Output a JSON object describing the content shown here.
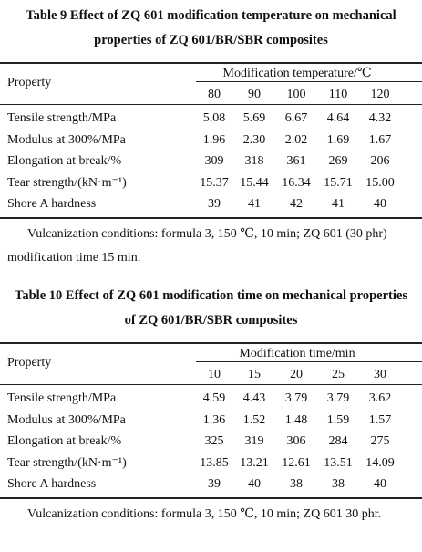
{
  "tables": [
    {
      "title": "Table 9  Effect of ZQ 601 modification temperature on mechanical properties of ZQ 601/BR/SBR composites",
      "property_header": "Property",
      "column_header": "Modification temperature/℃",
      "columns": [
        "80",
        "90",
        "100",
        "110",
        "120"
      ],
      "rows": [
        {
          "property": "Tensile strength/MPa",
          "values": [
            "5.08",
            "5.69",
            "6.67",
            "4.64",
            "4.32"
          ]
        },
        {
          "property": "Modulus at 300%/MPa",
          "values": [
            "1.96",
            "2.30",
            "2.02",
            "1.69",
            "1.67"
          ]
        },
        {
          "property": "Elongation at break/%",
          "values": [
            "309",
            "318",
            "361",
            "269",
            "206"
          ]
        },
        {
          "property": "Tear strength/(kN·m⁻¹)",
          "values": [
            "15.37",
            "15.44",
            "16.34",
            "15.71",
            "15.00"
          ]
        },
        {
          "property": "Shore A hardness",
          "values": [
            "39",
            "41",
            "42",
            "41",
            "40"
          ]
        }
      ],
      "note": "Vulcanization conditions: formula 3, 150 ℃, 10 min; ZQ 601 (30 phr) modification time 15 min."
    },
    {
      "title": "Table 10  Effect of ZQ 601 modification time on mechanical properties of ZQ 601/BR/SBR composites",
      "property_header": "Property",
      "column_header": "Modification time/min",
      "columns": [
        "10",
        "15",
        "20",
        "25",
        "30"
      ],
      "rows": [
        {
          "property": "Tensile strength/MPa",
          "values": [
            "4.59",
            "4.43",
            "3.79",
            "3.79",
            "3.62"
          ]
        },
        {
          "property": "Modulus at 300%/MPa",
          "values": [
            "1.36",
            "1.52",
            "1.48",
            "1.59",
            "1.57"
          ]
        },
        {
          "property": "Elongation at break/%",
          "values": [
            "325",
            "319",
            "306",
            "284",
            "275"
          ]
        },
        {
          "property": "Tear strength/(kN·m⁻¹)",
          "values": [
            "13.85",
            "13.21",
            "12.61",
            "13.51",
            "14.09"
          ]
        },
        {
          "property": "Shore A hardness",
          "values": [
            "39",
            "40",
            "38",
            "38",
            "40"
          ]
        }
      ],
      "note": "Vulcanization conditions: formula 3, 150 ℃, 10 min; ZQ 601 30 phr."
    }
  ]
}
